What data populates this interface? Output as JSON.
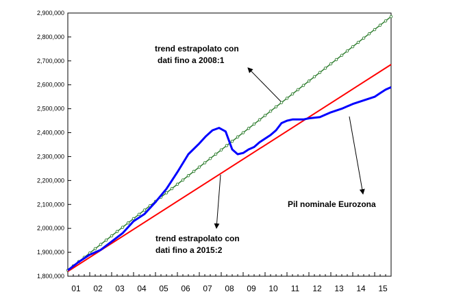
{
  "chart_data": {
    "type": "line",
    "title": "",
    "xlabel": "",
    "ylabel": "",
    "xlim": [
      2001.0,
      2015.75
    ],
    "ylim": [
      1800000,
      2900000
    ],
    "y_ticks": [
      1800000,
      1900000,
      2000000,
      2100000,
      2200000,
      2300000,
      2400000,
      2500000,
      2600000,
      2700000,
      2800000,
      2900000
    ],
    "y_tick_labels": [
      "1,800,000",
      "1,900,000",
      "2,000,000",
      "2,100,000",
      "2,200,000",
      "2,300,000",
      "2,400,000",
      "2,500,000",
      "2,600,000",
      "2,700,000",
      "2,800,000",
      "2,900,000"
    ],
    "x_tick_labels": [
      "01",
      "02",
      "03",
      "04",
      "05",
      "06",
      "07",
      "08",
      "09",
      "10",
      "11",
      "12",
      "13",
      "14",
      "15"
    ],
    "grid": false,
    "legend": "none",
    "series": [
      {
        "color": "#2e7d2e",
        "marker": "circle",
        "x": [
          2001.0,
          2015.75
        ],
        "y": [
          1825000,
          2885000
        ]
      },
      {
        "color": "#ff0000",
        "x": [
          2001.0,
          2015.75
        ],
        "y": [
          1820000,
          2685000
        ]
      },
      {
        "color": "#0000ff",
        "x": [
          2001.0,
          2001.5,
          2002.0,
          2002.5,
          2003.0,
          2003.5,
          2004.0,
          2004.5,
          2005.0,
          2005.5,
          2006.0,
          2006.5,
          2007.0,
          2007.3,
          2007.6,
          2007.9,
          2008.2,
          2008.5,
          2008.75,
          2009.0,
          2009.25,
          2009.5,
          2009.75,
          2010.0,
          2010.25,
          2010.5,
          2010.75,
          2011.0,
          2011.25,
          2011.5,
          2011.75,
          2012.0,
          2012.5,
          2013.0,
          2013.5,
          2014.0,
          2014.5,
          2015.0,
          2015.25,
          2015.5,
          2015.75
        ],
        "y": [
          1825000,
          1860000,
          1890000,
          1910000,
          1945000,
          1980000,
          2030000,
          2060000,
          2110000,
          2165000,
          2235000,
          2310000,
          2355000,
          2385000,
          2410000,
          2420000,
          2405000,
          2330000,
          2310000,
          2315000,
          2330000,
          2340000,
          2360000,
          2375000,
          2390000,
          2410000,
          2440000,
          2450000,
          2455000,
          2455000,
          2455000,
          2460000,
          2465000,
          2485000,
          2500000,
          2520000,
          2535000,
          2550000,
          2565000,
          2580000,
          2590000
        ]
      }
    ],
    "annotations": [
      {
        "lines": [
          "trend estrapolato con",
          "dati fino a 2008:1"
        ]
      },
      {
        "lines": [
          "trend estrapolato con",
          "dati fino a 2015:2"
        ]
      },
      {
        "lines": [
          "Pil nominale Eurozona"
        ]
      }
    ]
  }
}
